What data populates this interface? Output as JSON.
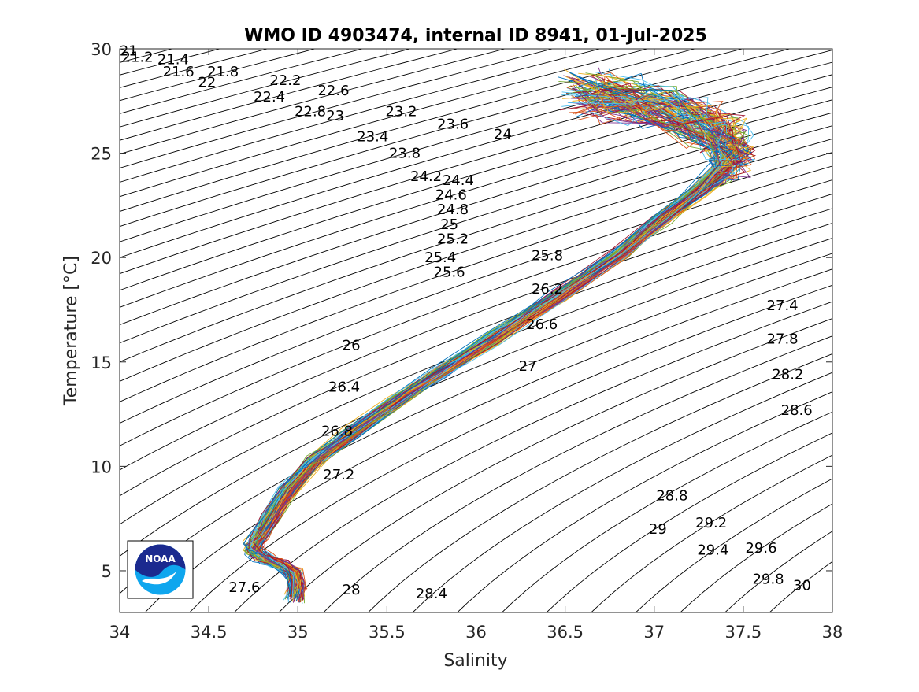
{
  "chart_data": {
    "type": "line",
    "title": "WMO ID 4903474, internal ID 8941, 01-Jul-2025",
    "xlabel": "Salinity",
    "ylabel": "Temperature [°C]",
    "xlim": [
      34,
      38
    ],
    "ylim": [
      3,
      30
    ],
    "xticks": [
      34,
      34.5,
      35,
      35.5,
      36,
      36.5,
      37,
      37.5,
      38
    ],
    "xtick_labels": [
      "34",
      "34.5",
      "35",
      "35.5",
      "36",
      "36.5",
      "37",
      "37.5",
      "38"
    ],
    "yticks": [
      5,
      10,
      15,
      20,
      25,
      30
    ],
    "ytick_labels": [
      "5",
      "10",
      "15",
      "20",
      "25",
      "30"
    ],
    "grid": false,
    "isopycnal_labels": [
      {
        "text": "21",
        "s": 34.05,
        "t": 29.9
      },
      {
        "text": "21.2",
        "s": 34.1,
        "t": 29.6
      },
      {
        "text": "21.4",
        "s": 34.3,
        "t": 29.5
      },
      {
        "text": "21.6",
        "s": 34.33,
        "t": 28.9
      },
      {
        "text": "21.8",
        "s": 34.58,
        "t": 28.9
      },
      {
        "text": "22",
        "s": 34.49,
        "t": 28.4
      },
      {
        "text": "22.2",
        "s": 34.93,
        "t": 28.5
      },
      {
        "text": "22.4",
        "s": 34.84,
        "t": 27.7
      },
      {
        "text": "22.6",
        "s": 35.2,
        "t": 28.0
      },
      {
        "text": "22.8",
        "s": 35.07,
        "t": 27.0
      },
      {
        "text": "23",
        "s": 35.21,
        "t": 26.8
      },
      {
        "text": "23.2",
        "s": 35.58,
        "t": 27.0
      },
      {
        "text": "23.4",
        "s": 35.42,
        "t": 25.8
      },
      {
        "text": "23.6",
        "s": 35.87,
        "t": 26.4
      },
      {
        "text": "23.8",
        "s": 35.6,
        "t": 25.0
      },
      {
        "text": "24",
        "s": 36.15,
        "t": 25.9
      },
      {
        "text": "24.2",
        "s": 35.72,
        "t": 23.9
      },
      {
        "text": "24.4",
        "s": 35.9,
        "t": 23.7
      },
      {
        "text": "24.6",
        "s": 35.86,
        "t": 23.0
      },
      {
        "text": "24.8",
        "s": 35.87,
        "t": 22.3
      },
      {
        "text": "25",
        "s": 35.85,
        "t": 21.6
      },
      {
        "text": "25.2",
        "s": 35.87,
        "t": 20.9
      },
      {
        "text": "25.4",
        "s": 35.8,
        "t": 20.0
      },
      {
        "text": "25.6",
        "s": 35.85,
        "t": 19.3
      },
      {
        "text": "25.8",
        "s": 36.4,
        "t": 20.1
      },
      {
        "text": "26",
        "s": 35.3,
        "t": 15.8
      },
      {
        "text": "26.2",
        "s": 36.4,
        "t": 18.5
      },
      {
        "text": "26.4",
        "s": 35.26,
        "t": 13.8
      },
      {
        "text": "26.6",
        "s": 36.37,
        "t": 16.8
      },
      {
        "text": "26.8",
        "s": 35.22,
        "t": 11.7
      },
      {
        "text": "27",
        "s": 36.29,
        "t": 14.8
      },
      {
        "text": "27.2",
        "s": 35.23,
        "t": 9.6
      },
      {
        "text": "27.4",
        "s": 37.72,
        "t": 17.7
      },
      {
        "text": "27.6",
        "s": 34.7,
        "t": 4.2
      },
      {
        "text": "27.8",
        "s": 37.72,
        "t": 16.1
      },
      {
        "text": "28",
        "s": 35.3,
        "t": 4.1
      },
      {
        "text": "28.2",
        "s": 37.75,
        "t": 14.4
      },
      {
        "text": "28.4",
        "s": 35.75,
        "t": 3.9
      },
      {
        "text": "28.6",
        "s": 37.8,
        "t": 12.7
      },
      {
        "text": "28.8",
        "s": 37.1,
        "t": 8.6
      },
      {
        "text": "29",
        "s": 37.02,
        "t": 7.0
      },
      {
        "text": "29.2",
        "s": 37.32,
        "t": 7.3
      },
      {
        "text": "29.4",
        "s": 37.33,
        "t": 6.0
      },
      {
        "text": "29.6",
        "s": 37.6,
        "t": 6.1
      },
      {
        "text": "29.8",
        "s": 37.64,
        "t": 4.6
      },
      {
        "text": "30",
        "s": 37.83,
        "t": 4.3
      }
    ],
    "profile_count": 120,
    "mean_profile": [
      {
        "s": 34.98,
        "t": 3.7
      },
      {
        "s": 34.99,
        "t": 4.3
      },
      {
        "s": 34.97,
        "t": 4.9
      },
      {
        "s": 34.9,
        "t": 5.3
      },
      {
        "s": 34.81,
        "t": 5.6
      },
      {
        "s": 34.75,
        "t": 5.9
      },
      {
        "s": 34.75,
        "t": 6.2
      },
      {
        "s": 34.78,
        "t": 6.6
      },
      {
        "s": 34.85,
        "t": 7.6
      },
      {
        "s": 34.95,
        "t": 8.9
      },
      {
        "s": 35.1,
        "t": 10.3
      },
      {
        "s": 35.3,
        "t": 11.6
      },
      {
        "s": 35.55,
        "t": 13.1
      },
      {
        "s": 35.8,
        "t": 14.5
      },
      {
        "s": 36.1,
        "t": 16.1
      },
      {
        "s": 36.45,
        "t": 18.1
      },
      {
        "s": 36.8,
        "t": 20.2
      },
      {
        "s": 37.05,
        "t": 21.9
      },
      {
        "s": 37.25,
        "t": 23.2
      },
      {
        "s": 37.38,
        "t": 24.2
      },
      {
        "s": 37.42,
        "t": 25.0
      },
      {
        "s": 37.38,
        "t": 25.8
      },
      {
        "s": 37.25,
        "t": 26.5
      },
      {
        "s": 37.05,
        "t": 27.1
      },
      {
        "s": 36.8,
        "t": 27.6
      },
      {
        "s": 36.6,
        "t": 27.9
      }
    ],
    "series_colors": [
      "#0072BD",
      "#D95319",
      "#EDB120",
      "#7E2F8E",
      "#77AC30",
      "#4DBEEE",
      "#A2142F"
    ],
    "axis_color": "#262626"
  },
  "logo": {
    "text": "NOAA",
    "primary": "#1b2a8f",
    "secondary": "#0fa6ee"
  }
}
